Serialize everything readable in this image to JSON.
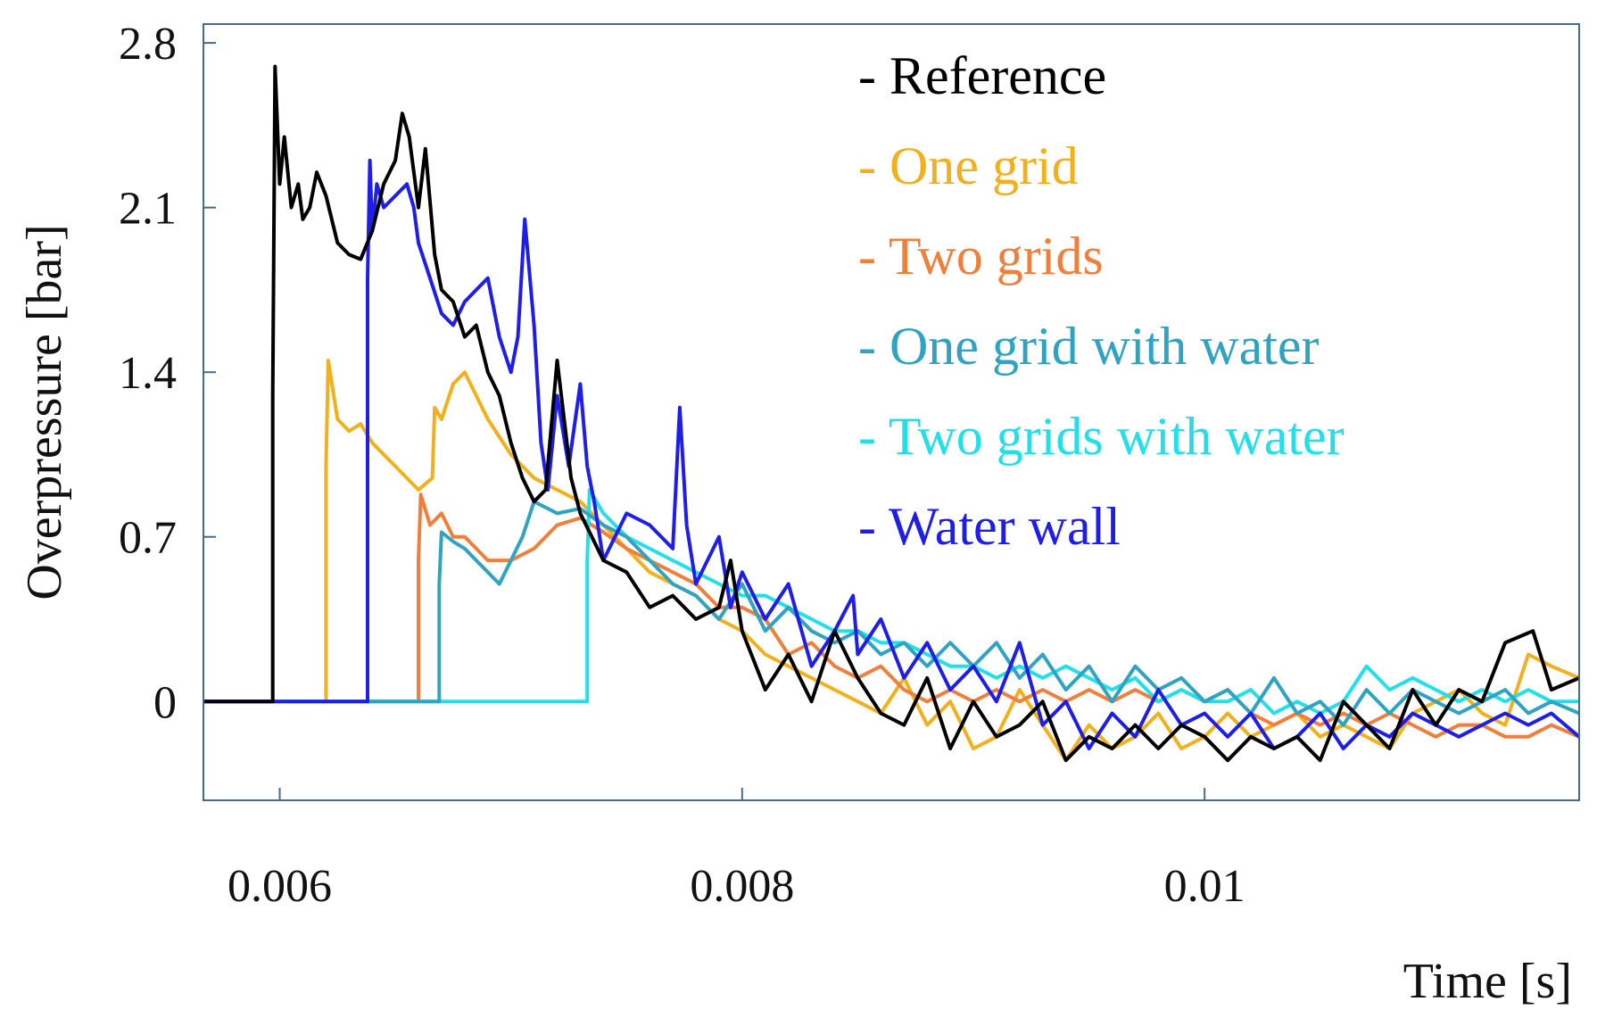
{
  "chart_data": {
    "type": "line",
    "title": "",
    "xlabel": "Time [s]",
    "ylabel": "Overpressure [bar]",
    "xlim": [
      0.00567,
      0.01162
    ],
    "ylim": [
      -0.42,
      2.88
    ],
    "xticks": [
      {
        "value": 0.006,
        "label": "0.006"
      },
      {
        "value": 0.008,
        "label": "0.008"
      },
      {
        "value": 0.01,
        "label": "0.01"
      }
    ],
    "yticks": [
      {
        "value": 0,
        "label": "0"
      },
      {
        "value": 0.7,
        "label": "0.7"
      },
      {
        "value": 1.4,
        "label": "1.4"
      },
      {
        "value": 2.1,
        "label": "2.1"
      },
      {
        "value": 2.8,
        "label": "2.8"
      }
    ],
    "legend_position": "top-right",
    "series": [
      {
        "name": "- Reference",
        "color": "#000000",
        "x": [
          0.00567,
          0.00597,
          0.00597,
          0.00598,
          0.006,
          0.00602,
          0.00605,
          0.00608,
          0.0061,
          0.00613,
          0.00616,
          0.0062,
          0.00625,
          0.0063,
          0.00635,
          0.0064,
          0.00645,
          0.0065,
          0.00653,
          0.00656,
          0.0066,
          0.00663,
          0.00667,
          0.0067,
          0.00675,
          0.0068,
          0.00685,
          0.0069,
          0.00695,
          0.007,
          0.00705,
          0.0071,
          0.00715,
          0.0072,
          0.00723,
          0.00726,
          0.0073,
          0.00735,
          0.0074,
          0.0075,
          0.0076,
          0.0077,
          0.0078,
          0.0079,
          0.00795,
          0.008,
          0.0081,
          0.0082,
          0.0083,
          0.0084,
          0.0085,
          0.0086,
          0.0087,
          0.0088,
          0.0089,
          0.009,
          0.0091,
          0.0092,
          0.0093,
          0.0094,
          0.0095,
          0.0096,
          0.0097,
          0.0098,
          0.0099,
          0.01,
          0.0101,
          0.0102,
          0.0103,
          0.0104,
          0.0105,
          0.0106,
          0.0107,
          0.0108,
          0.0109,
          0.011,
          0.0111,
          0.0112,
          0.0113,
          0.01142,
          0.0115,
          0.01162
        ],
        "y": [
          0,
          0,
          1.3,
          2.7,
          2.2,
          2.4,
          2.1,
          2.2,
          2.05,
          2.1,
          2.25,
          2.15,
          1.95,
          1.9,
          1.88,
          2.0,
          2.2,
          2.3,
          2.5,
          2.4,
          2.1,
          2.35,
          1.9,
          1.75,
          1.7,
          1.55,
          1.6,
          1.4,
          1.3,
          1.1,
          0.95,
          0.85,
          0.9,
          1.45,
          1.2,
          0.95,
          0.8,
          0.7,
          0.6,
          0.55,
          0.4,
          0.45,
          0.35,
          0.4,
          0.6,
          0.3,
          0.05,
          0.2,
          0.0,
          0.3,
          0.1,
          -0.05,
          -0.1,
          0.1,
          -0.2,
          0.0,
          -0.15,
          -0.1,
          0.0,
          -0.25,
          -0.15,
          -0.2,
          -0.1,
          -0.2,
          -0.1,
          -0.15,
          -0.25,
          -0.15,
          -0.2,
          -0.15,
          -0.25,
          0.0,
          -0.1,
          -0.2,
          0.05,
          -0.1,
          0.05,
          0.0,
          0.25,
          0.3,
          0.05,
          0.1
        ]
      },
      {
        "name": "- One grid",
        "color": "#F2B01C",
        "x": [
          0.00567,
          0.0062,
          0.0062,
          0.00621,
          0.00625,
          0.0063,
          0.00635,
          0.0064,
          0.0065,
          0.0066,
          0.00666,
          0.00667,
          0.0067,
          0.00675,
          0.0068,
          0.00685,
          0.0069,
          0.007,
          0.0071,
          0.0072,
          0.0073,
          0.0074,
          0.0075,
          0.0076,
          0.0077,
          0.0078,
          0.0079,
          0.008,
          0.0081,
          0.0082,
          0.0083,
          0.0084,
          0.0085,
          0.0086,
          0.0087,
          0.0088,
          0.0089,
          0.009,
          0.0091,
          0.0092,
          0.0093,
          0.0094,
          0.0095,
          0.0096,
          0.0097,
          0.0098,
          0.0099,
          0.01,
          0.0101,
          0.0102,
          0.0103,
          0.0104,
          0.0105,
          0.0106,
          0.0107,
          0.0108,
          0.0109,
          0.011,
          0.0111,
          0.0112,
          0.0113,
          0.0114,
          0.0115,
          0.01162
        ],
        "y": [
          0,
          0,
          1.0,
          1.45,
          1.2,
          1.15,
          1.18,
          1.1,
          1.0,
          0.9,
          0.95,
          1.25,
          1.2,
          1.35,
          1.4,
          1.3,
          1.2,
          1.05,
          0.95,
          0.9,
          0.85,
          0.75,
          0.65,
          0.55,
          0.5,
          0.45,
          0.35,
          0.3,
          0.2,
          0.15,
          0.1,
          0.05,
          0.0,
          -0.05,
          0.1,
          -0.1,
          0.0,
          -0.2,
          -0.15,
          0.05,
          -0.1,
          -0.25,
          -0.1,
          -0.2,
          -0.15,
          -0.05,
          -0.2,
          -0.15,
          -0.05,
          -0.15,
          -0.1,
          -0.05,
          -0.15,
          -0.1,
          -0.15,
          -0.2,
          -0.05,
          0.0,
          0.05,
          -0.05,
          -0.1,
          0.2,
          0.15,
          0.1
        ]
      },
      {
        "name": "- Two grids",
        "color": "#F07F3C",
        "x": [
          0.00567,
          0.0066,
          0.0066,
          0.00661,
          0.00665,
          0.0067,
          0.00675,
          0.0068,
          0.00685,
          0.0069,
          0.007,
          0.0071,
          0.0072,
          0.0073,
          0.0074,
          0.0075,
          0.0076,
          0.0077,
          0.0078,
          0.0079,
          0.008,
          0.0081,
          0.0082,
          0.0083,
          0.0084,
          0.0085,
          0.0086,
          0.0087,
          0.0088,
          0.0089,
          0.009,
          0.0091,
          0.0092,
          0.0093,
          0.0094,
          0.0095,
          0.0096,
          0.0097,
          0.0098,
          0.0099,
          0.01,
          0.0101,
          0.0102,
          0.0103,
          0.0104,
          0.0105,
          0.0106,
          0.0107,
          0.0108,
          0.0109,
          0.011,
          0.0111,
          0.0112,
          0.0113,
          0.0114,
          0.0115,
          0.01162
        ],
        "y": [
          0,
          0,
          0.6,
          0.88,
          0.75,
          0.8,
          0.7,
          0.7,
          0.65,
          0.6,
          0.6,
          0.65,
          0.75,
          0.78,
          0.72,
          0.65,
          0.6,
          0.55,
          0.5,
          0.4,
          0.4,
          0.35,
          0.2,
          0.25,
          0.15,
          0.1,
          0.15,
          0.05,
          0.0,
          0.05,
          0.0,
          0.05,
          0.0,
          0.05,
          0.0,
          0.05,
          0.0,
          0.05,
          0.0,
          0.05,
          0.0,
          0.05,
          -0.05,
          -0.1,
          -0.05,
          -0.1,
          -0.05,
          -0.1,
          -0.05,
          -0.1,
          -0.15,
          -0.1,
          -0.1,
          -0.15,
          -0.15,
          -0.1,
          -0.15
        ]
      },
      {
        "name": "- One grid with water",
        "color": "#2FA3C2",
        "x": [
          0.00567,
          0.00669,
          0.00669,
          0.0067,
          0.00675,
          0.0068,
          0.00685,
          0.0069,
          0.00695,
          0.007,
          0.00705,
          0.0071,
          0.0072,
          0.0073,
          0.0074,
          0.0075,
          0.0076,
          0.0077,
          0.0078,
          0.0079,
          0.008,
          0.0081,
          0.0082,
          0.0083,
          0.0084,
          0.0085,
          0.0086,
          0.0087,
          0.0088,
          0.0089,
          0.009,
          0.0091,
          0.0092,
          0.0093,
          0.0094,
          0.0095,
          0.0096,
          0.0097,
          0.0098,
          0.0099,
          0.01,
          0.0101,
          0.0102,
          0.0103,
          0.0104,
          0.0105,
          0.0106,
          0.0107,
          0.0108,
          0.0109,
          0.011,
          0.0111,
          0.0112,
          0.0113,
          0.0114,
          0.0115,
          0.01162
        ],
        "y": [
          0,
          0,
          0.5,
          0.72,
          0.68,
          0.65,
          0.6,
          0.55,
          0.5,
          0.6,
          0.7,
          0.85,
          0.8,
          0.82,
          0.75,
          0.7,
          0.6,
          0.5,
          0.45,
          0.35,
          0.5,
          0.3,
          0.4,
          0.3,
          0.25,
          0.3,
          0.2,
          0.25,
          0.15,
          0.25,
          0.15,
          0.25,
          0.1,
          0.2,
          0.05,
          0.15,
          0.0,
          0.15,
          0.05,
          0.1,
          0.0,
          0.05,
          -0.05,
          0.1,
          -0.05,
          0.0,
          -0.1,
          0.05,
          -0.05,
          0.05,
          0.0,
          -0.05,
          0.0,
          0.05,
          -0.05,
          0.0,
          -0.05
        ]
      },
      {
        "name": "- Two grids with water",
        "color": "#22E0EA",
        "x": [
          0.00567,
          0.00733,
          0.00733,
          0.00734,
          0.0074,
          0.0075,
          0.0076,
          0.0077,
          0.0078,
          0.0079,
          0.008,
          0.0081,
          0.0082,
          0.0083,
          0.0084,
          0.0085,
          0.0086,
          0.0087,
          0.0088,
          0.0089,
          0.009,
          0.0091,
          0.0092,
          0.0093,
          0.0094,
          0.0095,
          0.0096,
          0.0097,
          0.0098,
          0.0099,
          0.01,
          0.0101,
          0.0102,
          0.0103,
          0.0104,
          0.0105,
          0.0106,
          0.0107,
          0.0108,
          0.0109,
          0.011,
          0.0111,
          0.0112,
          0.0113,
          0.0114,
          0.0115,
          0.01162
        ],
        "y": [
          0,
          0,
          0.6,
          0.9,
          0.8,
          0.7,
          0.65,
          0.6,
          0.55,
          0.5,
          0.45,
          0.45,
          0.4,
          0.35,
          0.3,
          0.3,
          0.25,
          0.25,
          0.2,
          0.15,
          0.15,
          0.1,
          0.15,
          0.1,
          0.15,
          0.1,
          0.05,
          0.1,
          0.0,
          0.05,
          0.0,
          0.0,
          0.05,
          -0.05,
          0.0,
          -0.05,
          0.0,
          0.15,
          0.05,
          0.1,
          0.05,
          0.0,
          0.05,
          0.0,
          0.05,
          0.0,
          0.0
        ]
      },
      {
        "name": "- Water wall",
        "color": "#1E1EE8",
        "x": [
          0.00567,
          0.00638,
          0.00638,
          0.00639,
          0.0064,
          0.00642,
          0.00645,
          0.0065,
          0.00655,
          0.00658,
          0.0066,
          0.00665,
          0.0067,
          0.00675,
          0.0068,
          0.00685,
          0.0069,
          0.00695,
          0.007,
          0.00703,
          0.00706,
          0.0071,
          0.00713,
          0.00716,
          0.0072,
          0.00725,
          0.0073,
          0.00733,
          0.00736,
          0.0074,
          0.0075,
          0.0076,
          0.0077,
          0.00773,
          0.00776,
          0.0078,
          0.0079,
          0.00795,
          0.008,
          0.0081,
          0.0082,
          0.0083,
          0.0084,
          0.00848,
          0.0085,
          0.0086,
          0.0087,
          0.0088,
          0.0089,
          0.009,
          0.0091,
          0.0092,
          0.0093,
          0.0094,
          0.0095,
          0.0096,
          0.0097,
          0.0098,
          0.0099,
          0.01,
          0.0101,
          0.0102,
          0.0103,
          0.0104,
          0.0105,
          0.0106,
          0.0107,
          0.0108,
          0.0109,
          0.011,
          0.0111,
          0.0112,
          0.0113,
          0.0114,
          0.0115,
          0.01162
        ],
        "y": [
          0,
          0,
          1.8,
          2.3,
          2.0,
          2.2,
          2.1,
          2.15,
          2.2,
          2.1,
          1.95,
          1.8,
          1.65,
          1.6,
          1.7,
          1.75,
          1.8,
          1.55,
          1.4,
          1.55,
          2.05,
          1.6,
          1.1,
          0.9,
          1.3,
          1.0,
          1.35,
          1.0,
          0.85,
          0.6,
          0.8,
          0.75,
          0.65,
          1.25,
          0.75,
          0.5,
          0.7,
          0.4,
          0.55,
          0.35,
          0.5,
          0.15,
          0.3,
          0.45,
          0.2,
          0.35,
          0.1,
          0.25,
          0.05,
          0.15,
          0.0,
          0.25,
          -0.1,
          0.0,
          -0.2,
          -0.05,
          -0.15,
          0.05,
          -0.1,
          -0.05,
          -0.15,
          -0.05,
          -0.2,
          -0.15,
          -0.05,
          -0.2,
          -0.1,
          -0.15,
          -0.05,
          -0.1,
          -0.15,
          -0.1,
          -0.05,
          -0.1,
          -0.05,
          -0.15
        ]
      }
    ]
  }
}
